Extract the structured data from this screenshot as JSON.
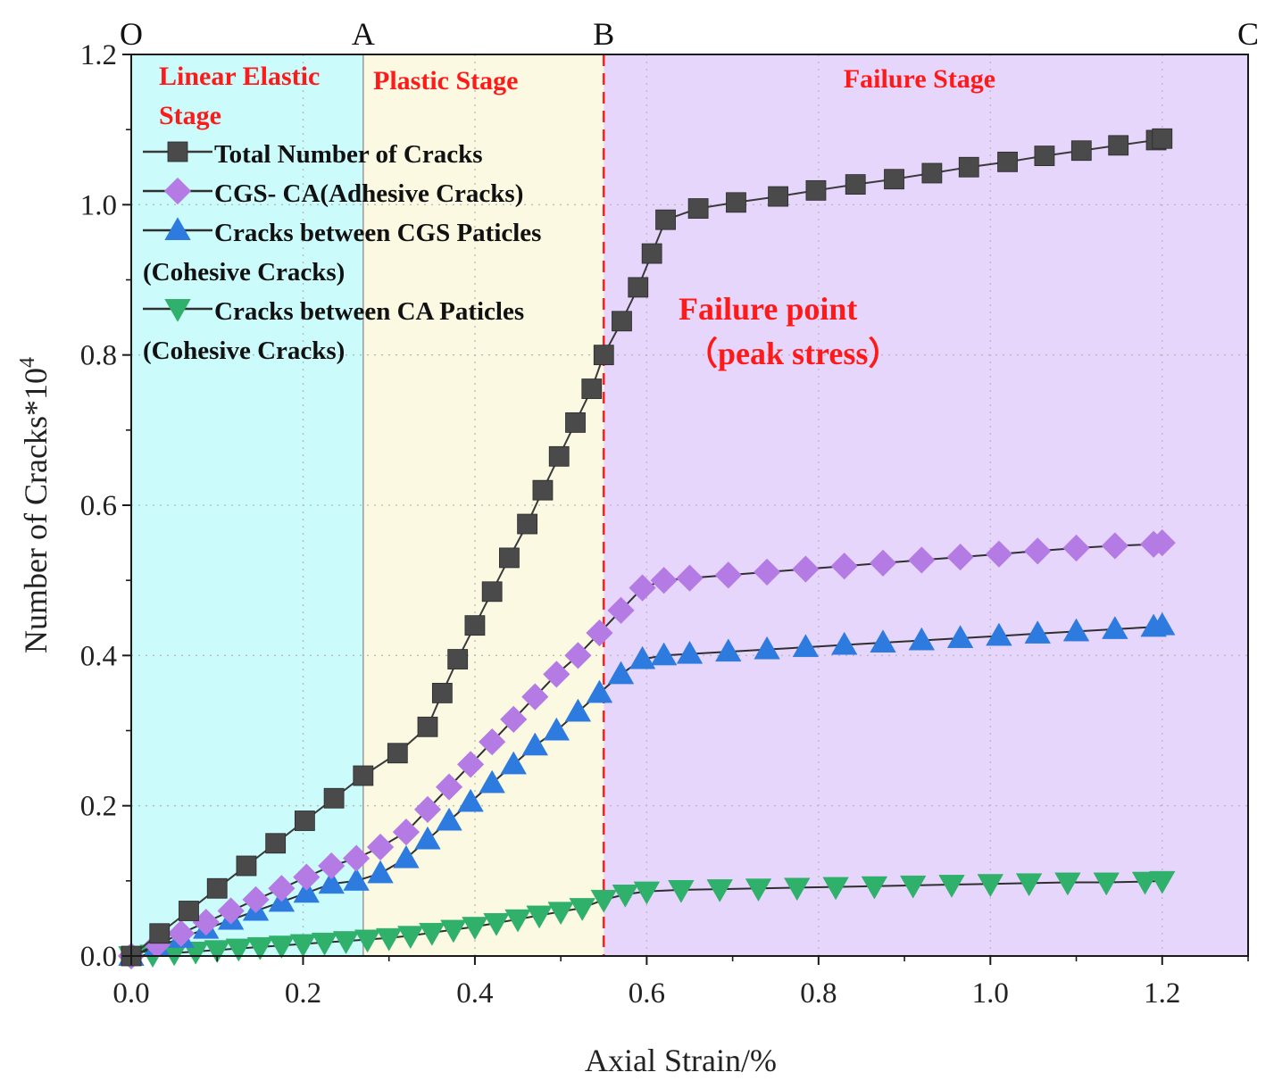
{
  "chart_data": {
    "type": "line",
    "xlabel": "Axial Strain/%",
    "ylabel": "Number of Cracks*10",
    "ylabel_superscript": "4",
    "xlim": [
      0,
      1.3
    ],
    "ylim": [
      0,
      1.2
    ],
    "xticks": [
      0.0,
      0.2,
      0.4,
      0.6,
      0.8,
      1.0,
      1.2
    ],
    "yticks": [
      0.0,
      0.2,
      0.4,
      0.6,
      0.8,
      1.0,
      1.2
    ],
    "xtick_labels": [
      "0.0",
      "0.2",
      "0.4",
      "0.6",
      "0.8",
      "1.0",
      "1.2"
    ],
    "ytick_labels": [
      "0.0",
      "0.2",
      "0.4",
      "0.6",
      "0.8",
      "1.0",
      "1.2"
    ],
    "grid": "dotted",
    "stages": [
      {
        "x0": 0.0,
        "x1": 0.27,
        "color": "#ccfbfc",
        "label_lines": [
          "Linear Elastic",
          "Stage"
        ]
      },
      {
        "x0": 0.27,
        "x1": 0.55,
        "color": "#fbf9e2",
        "label_lines": [
          "Plastic Stage"
        ]
      },
      {
        "x0": 0.55,
        "x1": 1.3,
        "color": "#e6d6fb",
        "label_lines": [
          "Failure Stage"
        ]
      }
    ],
    "stage_points": [
      {
        "label": "O",
        "x": 0.0
      },
      {
        "label": "A",
        "x": 0.27
      },
      {
        "label": "B",
        "x": 0.55
      },
      {
        "label": "C",
        "x": 1.3
      }
    ],
    "failure_line_x": 0.55,
    "failure_annotation": [
      "Failure point",
      "（peak stress）"
    ],
    "legend_position": "top-left",
    "series": [
      {
        "name": "Total Number of Cracks",
        "legend_lines": [
          "Total Number of Cracks"
        ],
        "marker": "square",
        "color": "#4a4a4a",
        "line_color": "#3a3a3a",
        "x": [
          0.0,
          0.033,
          0.067,
          0.1,
          0.134,
          0.168,
          0.202,
          0.236,
          0.27,
          0.31,
          0.345,
          0.362,
          0.38,
          0.4,
          0.42,
          0.44,
          0.461,
          0.479,
          0.498,
          0.517,
          0.536,
          0.55,
          0.571,
          0.59,
          0.606,
          0.622,
          0.66,
          0.704,
          0.753,
          0.797,
          0.843,
          0.888,
          0.932,
          0.975,
          1.02,
          1.063,
          1.106,
          1.149,
          1.193,
          1.2
        ],
        "y": [
          0.0,
          0.03,
          0.06,
          0.09,
          0.12,
          0.15,
          0.18,
          0.21,
          0.24,
          0.27,
          0.305,
          0.35,
          0.395,
          0.44,
          0.485,
          0.53,
          0.575,
          0.62,
          0.665,
          0.71,
          0.755,
          0.8,
          0.845,
          0.89,
          0.935,
          0.98,
          0.995,
          1.003,
          1.011,
          1.019,
          1.027,
          1.034,
          1.042,
          1.05,
          1.057,
          1.065,
          1.072,
          1.079,
          1.086,
          1.088
        ]
      },
      {
        "name": "CGS- CA(Adhesive Cracks)",
        "legend_lines": [
          "CGS- CA(Adhesive Cracks)"
        ],
        "marker": "diamond",
        "color": "#b57be4",
        "line_color": "#2f2f2f",
        "x": [
          0.0,
          0.03,
          0.058,
          0.087,
          0.116,
          0.145,
          0.175,
          0.204,
          0.233,
          0.262,
          0.29,
          0.32,
          0.345,
          0.37,
          0.395,
          0.42,
          0.445,
          0.47,
          0.495,
          0.52,
          0.545,
          0.57,
          0.595,
          0.62,
          0.65,
          0.695,
          0.74,
          0.785,
          0.83,
          0.875,
          0.92,
          0.965,
          1.01,
          1.055,
          1.1,
          1.145,
          1.19,
          1.2
        ],
        "y": [
          0.0,
          0.015,
          0.03,
          0.045,
          0.06,
          0.075,
          0.09,
          0.105,
          0.12,
          0.13,
          0.145,
          0.165,
          0.195,
          0.225,
          0.255,
          0.285,
          0.315,
          0.345,
          0.375,
          0.4,
          0.43,
          0.46,
          0.49,
          0.5,
          0.503,
          0.507,
          0.511,
          0.515,
          0.519,
          0.523,
          0.527,
          0.531,
          0.535,
          0.539,
          0.543,
          0.546,
          0.548,
          0.55
        ]
      },
      {
        "name": "Cracks between CGS Paticles (Cohesive Cracks)",
        "legend_lines": [
          "Cracks between CGS Paticles",
          "(Cohesive Cracks)"
        ],
        "marker": "triangle-up",
        "color": "#2e7be0",
        "line_color": "#2f2f2f",
        "x": [
          0.0,
          0.03,
          0.058,
          0.087,
          0.116,
          0.145,
          0.175,
          0.204,
          0.233,
          0.262,
          0.29,
          0.32,
          0.345,
          0.37,
          0.395,
          0.42,
          0.445,
          0.47,
          0.495,
          0.52,
          0.545,
          0.57,
          0.595,
          0.62,
          0.65,
          0.695,
          0.74,
          0.785,
          0.83,
          0.875,
          0.92,
          0.965,
          1.01,
          1.055,
          1.1,
          1.145,
          1.19,
          1.2
        ],
        "y": [
          0.0,
          0.012,
          0.024,
          0.036,
          0.048,
          0.06,
          0.072,
          0.084,
          0.096,
          0.1,
          0.11,
          0.13,
          0.155,
          0.18,
          0.205,
          0.23,
          0.255,
          0.28,
          0.3,
          0.325,
          0.35,
          0.375,
          0.395,
          0.4,
          0.402,
          0.405,
          0.408,
          0.411,
          0.414,
          0.417,
          0.42,
          0.423,
          0.426,
          0.429,
          0.432,
          0.435,
          0.438,
          0.44
        ]
      },
      {
        "name": "Cracks between CA Paticles (Cohesive Cracks)",
        "legend_lines": [
          "Cracks between CA Paticles",
          "(Cohesive Cracks)"
        ],
        "marker": "triangle-down",
        "color": "#2fb06b",
        "line_color": "#2f2f2f",
        "x": [
          0.0,
          0.025,
          0.05,
          0.075,
          0.1,
          0.125,
          0.15,
          0.175,
          0.2,
          0.225,
          0.25,
          0.275,
          0.3,
          0.325,
          0.35,
          0.375,
          0.4,
          0.425,
          0.45,
          0.475,
          0.5,
          0.525,
          0.55,
          0.575,
          0.6,
          0.64,
          0.685,
          0.73,
          0.775,
          0.82,
          0.865,
          0.91,
          0.955,
          1.0,
          1.045,
          1.09,
          1.135,
          1.18,
          1.2
        ],
        "y": [
          0.0,
          0.002,
          0.004,
          0.006,
          0.008,
          0.01,
          0.012,
          0.014,
          0.016,
          0.018,
          0.02,
          0.022,
          0.024,
          0.027,
          0.031,
          0.035,
          0.039,
          0.044,
          0.049,
          0.054,
          0.059,
          0.064,
          0.075,
          0.082,
          0.086,
          0.088,
          0.089,
          0.09,
          0.091,
          0.092,
          0.093,
          0.094,
          0.095,
          0.096,
          0.097,
          0.098,
          0.098,
          0.099,
          0.1
        ]
      }
    ]
  }
}
